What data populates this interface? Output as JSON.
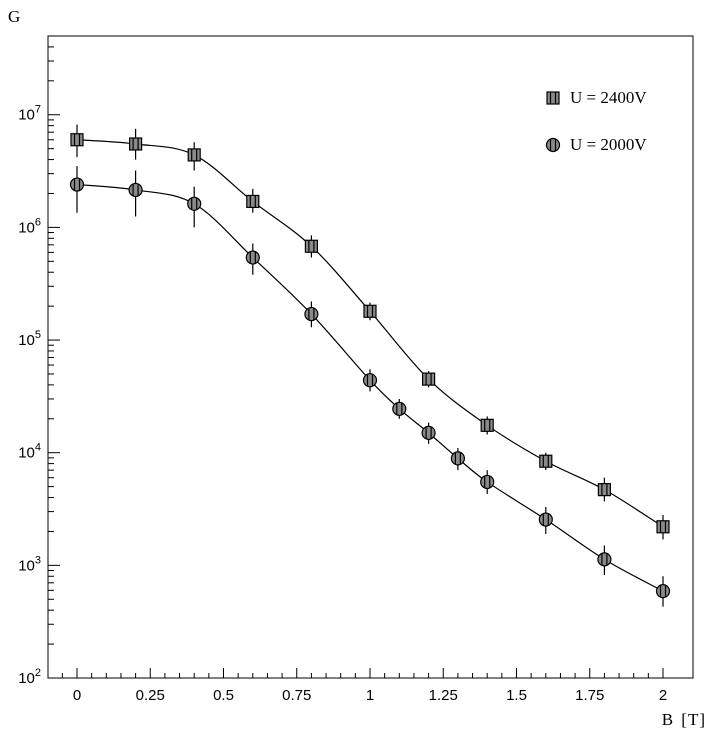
{
  "chart_data": {
    "type": "scatter",
    "title": "",
    "ylabel": "G",
    "xlabel": "B [T]",
    "y_scale": "log",
    "xlim": [
      -0.1,
      2.1
    ],
    "ylim": [
      100,
      50000000
    ],
    "grid": false,
    "legend_position": "top-right",
    "x_ticks": [
      {
        "value": 0,
        "label": "0"
      },
      {
        "value": 0.25,
        "label": "0.25"
      },
      {
        "value": 0.5,
        "label": "0.5"
      },
      {
        "value": 0.75,
        "label": "0.75"
      },
      {
        "value": 1,
        "label": "1"
      },
      {
        "value": 1.25,
        "label": "1.25"
      },
      {
        "value": 1.5,
        "label": "1.5"
      },
      {
        "value": 1.75,
        "label": "1.75"
      },
      {
        "value": 2,
        "label": "2"
      }
    ],
    "y_ticks": [
      {
        "value": 100,
        "base": "10",
        "exp": "2"
      },
      {
        "value": 1000,
        "base": "10",
        "exp": "3"
      },
      {
        "value": 10000,
        "base": "10",
        "exp": "4"
      },
      {
        "value": 100000,
        "base": "10",
        "exp": "5"
      },
      {
        "value": 1000000,
        "base": "10",
        "exp": "6"
      },
      {
        "value": 10000000,
        "base": "10",
        "exp": "7"
      }
    ],
    "series": [
      {
        "name": "U = 2400V",
        "marker": "square",
        "x": [
          0,
          0.2,
          0.4,
          0.6,
          0.8,
          1.0,
          1.2,
          1.4,
          1.6,
          1.8,
          2.0
        ],
        "y": [
          6000000,
          5500000,
          4400000,
          1700000,
          680000,
          180000,
          45000,
          17500,
          8400,
          4700,
          2200
        ],
        "y_err_low": [
          4200000,
          4000000,
          3200000,
          1350000,
          540000,
          150000,
          38000,
          14500,
          7000,
          3700,
          1700
        ],
        "y_err_high": [
          8200000,
          7500000,
          5700000,
          2200000,
          850000,
          215000,
          53000,
          21000,
          10000,
          6000,
          2800
        ]
      },
      {
        "name": "U = 2000V",
        "marker": "circle",
        "x": [
          0,
          0.2,
          0.4,
          0.6,
          0.8,
          1.0,
          1.1,
          1.2,
          1.3,
          1.4,
          1.6,
          1.8,
          2.0
        ],
        "y": [
          2400000,
          2150000,
          1620000,
          540000,
          170000,
          44000,
          24500,
          15000,
          8900,
          5500,
          2550,
          1130,
          590
        ],
        "y_err_low": [
          1350000,
          1250000,
          1000000,
          380000,
          130000,
          35000,
          20000,
          12000,
          7000,
          4300,
          1900,
          820,
          430
        ],
        "y_err_high": [
          3500000,
          3200000,
          2300000,
          720000,
          220000,
          55000,
          30000,
          18500,
          11000,
          7000,
          3300,
          1500,
          800
        ]
      }
    ]
  }
}
